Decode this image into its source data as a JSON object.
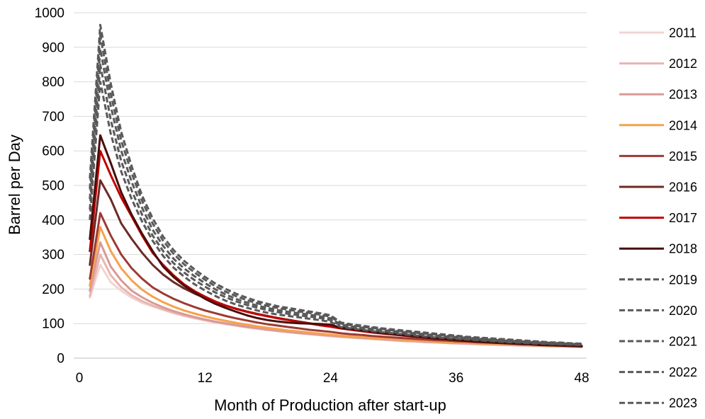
{
  "chart_data": {
    "type": "line",
    "xlabel": "Month of Production after start-up",
    "ylabel": "Barrel per Day",
    "xlim": [
      0,
      48
    ],
    "ylim": [
      0,
      1000
    ],
    "x_ticks": [
      0,
      12,
      24,
      36,
      48
    ],
    "y_ticks": [
      0,
      100,
      200,
      300,
      400,
      500,
      600,
      700,
      800,
      900,
      1000
    ],
    "grid": "horizontal",
    "legend_position": "right",
    "x": [
      1,
      2,
      3,
      4,
      5,
      6,
      7,
      8,
      9,
      10,
      11,
      12,
      13,
      14,
      15,
      16,
      17,
      18,
      19,
      20,
      21,
      22,
      23,
      24,
      25,
      26,
      27,
      28,
      29,
      30,
      31,
      32,
      33,
      34,
      35,
      36,
      37,
      38,
      39,
      40,
      41,
      42,
      43,
      44,
      45,
      46,
      47,
      48
    ],
    "series": [
      {
        "name": "2011",
        "color": "#f3d3d1",
        "dash": "solid",
        "values": [
          175,
          270,
          220,
          195,
          175,
          160,
          150,
          140,
          130,
          122,
          115,
          109,
          103,
          98,
          94,
          89,
          85,
          81,
          78,
          75,
          72,
          69,
          66,
          63,
          61,
          59,
          57,
          55,
          53,
          51,
          49,
          48,
          46,
          45,
          44,
          42,
          41,
          40,
          39,
          38,
          37,
          36,
          35,
          35,
          34,
          33,
          32,
          32
        ]
      },
      {
        "name": "2012",
        "color": "#e8b5b0",
        "dash": "solid",
        "values": [
          180,
          300,
          240,
          205,
          182,
          165,
          152,
          141,
          132,
          124,
          117,
          110,
          104,
          99,
          94,
          90,
          86,
          82,
          78,
          75,
          72,
          69,
          67,
          64,
          62,
          60,
          58,
          56,
          54,
          52,
          50,
          49,
          47,
          46,
          44,
          43,
          42,
          41,
          40,
          39,
          38,
          37,
          36,
          35,
          34,
          34,
          33,
          32
        ]
      },
      {
        "name": "2013",
        "color": "#d89a96",
        "dash": "solid",
        "values": [
          195,
          335,
          265,
          225,
          195,
          176,
          160,
          147,
          136,
          127,
          119,
          112,
          106,
          101,
          96,
          91,
          87,
          83,
          80,
          76,
          73,
          71,
          68,
          66,
          63,
          61,
          59,
          57,
          55,
          53,
          51,
          50,
          48,
          47,
          45,
          44,
          43,
          42,
          41,
          40,
          39,
          38,
          37,
          36,
          35,
          34,
          34,
          33
        ]
      },
      {
        "name": "2014",
        "color": "#f7a14c",
        "dash": "solid",
        "values": [
          210,
          380,
          310,
          260,
          225,
          198,
          178,
          162,
          149,
          138,
          129,
          121,
          114,
          108,
          102,
          97,
          92,
          88,
          84,
          80,
          77,
          74,
          71,
          68,
          65,
          63,
          61,
          59,
          57,
          55,
          53,
          51,
          50,
          48,
          47,
          45,
          44,
          43,
          42,
          41,
          40,
          39,
          38,
          37,
          36,
          35,
          34,
          33
        ]
      },
      {
        "name": "2015",
        "color": "#9c3a34",
        "dash": "solid",
        "values": [
          230,
          420,
          355,
          300,
          260,
          230,
          205,
          187,
          172,
          159,
          148,
          138,
          130,
          122,
          115,
          109,
          103,
          98,
          94,
          90,
          86,
          82,
          79,
          76,
          72,
          69,
          67,
          64,
          62,
          60,
          58,
          56,
          54,
          52,
          51,
          49,
          48,
          46,
          45,
          44,
          42,
          41,
          40,
          39,
          38,
          37,
          36,
          35
        ]
      },
      {
        "name": "2016",
        "color": "#6b2a26",
        "dash": "solid",
        "values": [
          270,
          515,
          460,
          390,
          345,
          305,
          270,
          242,
          220,
          202,
          187,
          174,
          162,
          152,
          143,
          135,
          128,
          122,
          116,
          111,
          106,
          101,
          96,
          92,
          86,
          82,
          78,
          75,
          72,
          69,
          66,
          63,
          61,
          58,
          56,
          54,
          52,
          50,
          48,
          46,
          45,
          43,
          42,
          40,
          39,
          38,
          37,
          36
        ]
      },
      {
        "name": "2017",
        "color": "#c00000",
        "dash": "solid",
        "values": [
          310,
          600,
          530,
          465,
          410,
          355,
          305,
          270,
          240,
          214,
          194,
          178,
          164,
          152,
          142,
          134,
          127,
          121,
          115,
          110,
          105,
          100,
          95,
          91,
          86,
          82,
          78,
          74,
          71,
          68,
          65,
          62,
          60,
          57,
          55,
          53,
          51,
          49,
          47,
          45,
          44,
          42,
          41,
          39,
          38,
          37,
          36,
          35
        ]
      },
      {
        "name": "2018",
        "color": "#4a0d0b",
        "dash": "solid",
        "values": [
          345,
          645,
          565,
          480,
          415,
          360,
          310,
          265,
          235,
          210,
          190,
          172,
          157,
          145,
          134,
          124,
          116,
          110,
          106,
          103,
          101,
          100,
          99,
          97,
          88,
          84,
          80,
          76,
          72,
          69,
          66,
          63,
          60,
          57,
          55,
          52,
          50,
          48,
          46,
          44,
          43,
          41,
          40,
          38,
          37,
          36,
          35,
          34
        ]
      },
      {
        "name": "2019",
        "color": "#595959",
        "dash": "dashed",
        "values": [
          400,
          800,
          650,
          540,
          460,
          395,
          340,
          296,
          262,
          236,
          214,
          196,
          180,
          166,
          155,
          146,
          138,
          131,
          126,
          122,
          118,
          114,
          110,
          105,
          90,
          86,
          82,
          78,
          75,
          72,
          69,
          66,
          63,
          60,
          58,
          56,
          54,
          52,
          50,
          48,
          46,
          45,
          43,
          42,
          41,
          40,
          39,
          38
        ]
      },
      {
        "name": "2020",
        "color": "#595959",
        "dash": "dashed",
        "values": [
          430,
          850,
          690,
          570,
          485,
          415,
          355,
          310,
          275,
          248,
          226,
          207,
          190,
          176,
          164,
          154,
          146,
          139,
          133,
          128,
          124,
          120,
          116,
          110,
          94,
          89,
          85,
          81,
          78,
          75,
          72,
          69,
          66,
          63,
          61,
          58,
          56,
          54,
          52,
          50,
          48,
          47,
          45,
          44,
          42,
          41,
          40,
          39
        ]
      },
      {
        "name": "2021",
        "color": "#595959",
        "dash": "dashed",
        "values": [
          460,
          895,
          730,
          600,
          510,
          435,
          372,
          325,
          288,
          260,
          237,
          217,
          199,
          184,
          171,
          161,
          152,
          145,
          139,
          134,
          130,
          126,
          121,
          115,
          97,
          92,
          88,
          84,
          81,
          78,
          75,
          72,
          69,
          66,
          63,
          61,
          59,
          56,
          54,
          52,
          50,
          49,
          47,
          45,
          44,
          43,
          41,
          40
        ]
      },
      {
        "name": "2022",
        "color": "#595959",
        "dash": "dashed",
        "values": [
          490,
          935,
          765,
          630,
          535,
          455,
          390,
          340,
          302,
          272,
          248,
          227,
          208,
          192,
          179,
          168,
          159,
          151,
          145,
          140,
          135,
          131,
          126,
          120,
          100,
          95,
          91,
          87,
          84,
          80,
          77,
          74,
          71,
          68,
          65,
          63,
          60,
          58,
          56,
          54,
          52,
          50,
          48,
          47,
          45,
          44,
          42,
          41
        ]
      },
      {
        "name": "2023",
        "color": "#595959",
        "dash": "dashed",
        "values": [
          520,
          965,
          795,
          655,
          555,
          470,
          405,
          352,
          313,
          282,
          257,
          235,
          216,
          200,
          186,
          175,
          165,
          157,
          150,
          145,
          140,
          135,
          130,
          124,
          103,
          98,
          94,
          90,
          86,
          83,
          80,
          77,
          74,
          71,
          68,
          65,
          62,
          60,
          58,
          56,
          54,
          52,
          50,
          48,
          46,
          45,
          43,
          42
        ]
      }
    ]
  }
}
